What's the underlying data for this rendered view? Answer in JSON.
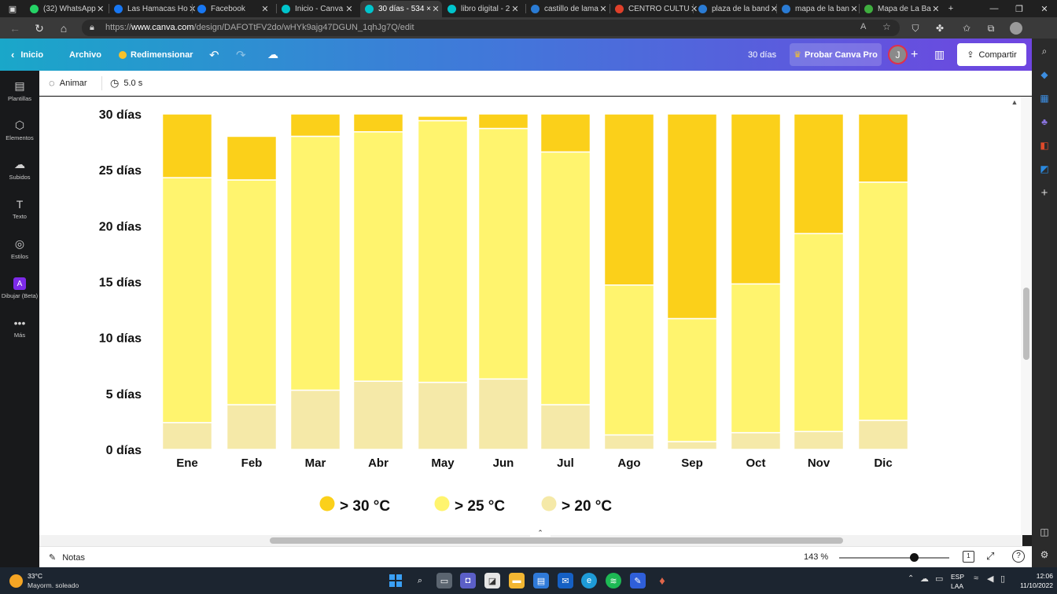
{
  "browser": {
    "tabs": [
      {
        "title": "(32) WhatsApp",
        "icon": "whatsapp-icon",
        "color": "#25D366",
        "active": false
      },
      {
        "title": "Las Hamacas Ho",
        "icon": "facebook-icon",
        "color": "#1877F2",
        "active": false
      },
      {
        "title": "Facebook",
        "icon": "facebook-icon",
        "color": "#1877F2",
        "active": false
      },
      {
        "title": "Inicio - Canva",
        "icon": "canva-icon",
        "color": "#00C4CC",
        "active": false
      },
      {
        "title": "30 días - 534 ×",
        "icon": "canva-icon",
        "color": "#00C4CC",
        "active": true
      },
      {
        "title": "libro digital - 2",
        "icon": "canva-icon",
        "color": "#00C4CC",
        "active": false
      },
      {
        "title": "castillo de lama",
        "icon": "bing-icon",
        "color": "#2a7bd4",
        "active": false
      },
      {
        "title": "CENTRO CULTU",
        "icon": "target-icon",
        "color": "#e0402a",
        "active": false
      },
      {
        "title": "plaza de la band",
        "icon": "bing-icon",
        "color": "#2a7bd4",
        "active": false
      },
      {
        "title": "mapa de la ban",
        "icon": "search-icon",
        "color": "#2a7bd4",
        "active": false
      },
      {
        "title": "Mapa de La Ba",
        "icon": "map-pin-icon",
        "color": "#3fae3f",
        "active": false
      }
    ],
    "url_prefix": "https://",
    "url_domain": "www.canva.com",
    "url_path": "/design/DAFOTtFV2do/wHYk9ajg47DGUN_1qhJg7Q/edit"
  },
  "canva_header": {
    "home": "Inicio",
    "file": "Archivo",
    "resize": "Redimensionar",
    "doc_title": "30 días",
    "try_pro": "Probar Canva Pro",
    "avatar_initial": "J",
    "share": "Compartir"
  },
  "sidebar": {
    "items": [
      {
        "label": "Plantillas",
        "icon": "templates-icon"
      },
      {
        "label": "Elementos",
        "icon": "elements-icon"
      },
      {
        "label": "Subidos",
        "icon": "upload-icon"
      },
      {
        "label": "Texto",
        "icon": "text-icon"
      },
      {
        "label": "Estilos",
        "icon": "styles-icon"
      },
      {
        "label": "Dibujar (Beta)",
        "icon": "draw-icon"
      },
      {
        "label": "Más",
        "icon": "more-icon"
      }
    ]
  },
  "toolbar": {
    "animate": "Animar",
    "duration": "5.0 s"
  },
  "chart_data": {
    "type": "bar",
    "stacked": true,
    "title": "",
    "xlabel": "",
    "ylabel": "",
    "ylim": [
      0,
      30
    ],
    "yticks": [
      "0 días",
      "5 días",
      "10 días",
      "15 días",
      "20 días",
      "25 días",
      "30 días"
    ],
    "categories": [
      "Ene",
      "Feb",
      "Mar",
      "Abr",
      "May",
      "Jun",
      "Jul",
      "Ago",
      "Sep",
      "Oct",
      "Nov",
      "Dic"
    ],
    "series": [
      {
        "name": "> 20 °C",
        "color": "#F5E9A8",
        "values": [
          2.4,
          4.0,
          5.3,
          6.1,
          6.0,
          6.3,
          4.0,
          1.3,
          0.7,
          1.5,
          1.6,
          2.6
        ]
      },
      {
        "name": "> 25 °C",
        "color": "#FFF46E",
        "values": [
          21.9,
          20.1,
          22.7,
          22.3,
          23.4,
          22.4,
          22.6,
          13.4,
          11.0,
          13.3,
          17.7,
          21.3
        ]
      },
      {
        "name": "> 30 °C",
        "color": "#FBD01A",
        "values": [
          5.7,
          3.9,
          2.0,
          1.6,
          0.4,
          1.3,
          3.4,
          15.3,
          18.3,
          15.2,
          10.7,
          6.1
        ]
      }
    ],
    "legend": [
      "> 30 °C",
      "> 25 °C",
      "> 20 °C"
    ],
    "legend_position": "bottom"
  },
  "bottom_bar": {
    "notes": "Notas",
    "zoom": "143 %",
    "page_number": "1"
  },
  "taskbar": {
    "temperature": "33°C",
    "weather": "Mayorm. soleado",
    "lang_top": "ESP",
    "lang_bottom": "LAA",
    "time": "12:06",
    "date": "11/10/2022"
  }
}
